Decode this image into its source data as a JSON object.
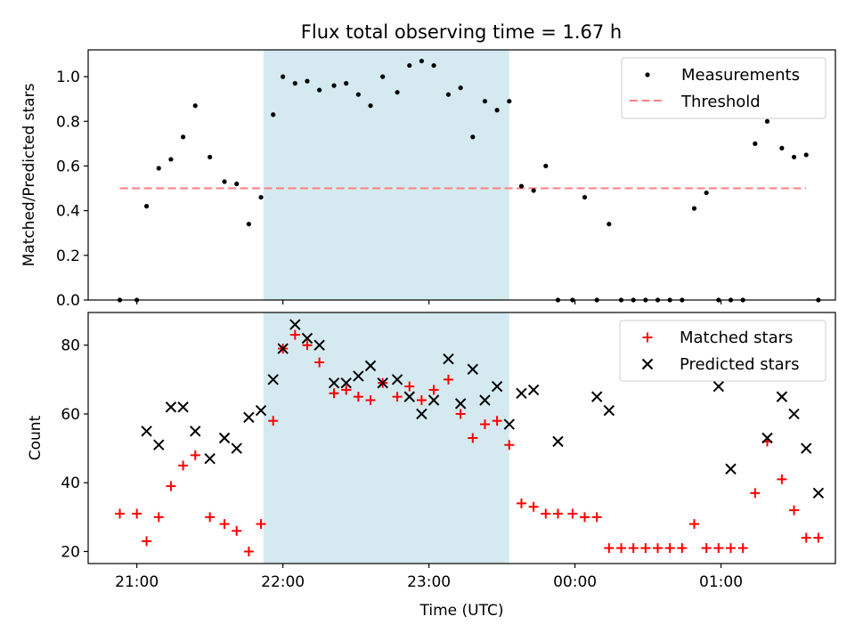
{
  "chart_data": [
    {
      "type": "scatter",
      "title": "Flux total observing time = 1.67 h",
      "xlabel": "",
      "ylabel": "Matched/Predicted stars",
      "xlim": [
        "20:40",
        "01:47"
      ],
      "ylim": [
        0,
        1.12
      ],
      "yticks": [
        "0.0",
        "0.2",
        "0.4",
        "0.6",
        "0.8",
        "1.0"
      ],
      "shaded_span": {
        "start": "21:52",
        "end": "23:33",
        "color": "#d4eaf0"
      },
      "legend": {
        "position": "upper right",
        "entries": [
          {
            "label": "Measurements",
            "marker": "dot",
            "color": "#000000"
          },
          {
            "label": "Threshold",
            "marker": "dashed-line",
            "color": "#ff7f7f"
          }
        ]
      },
      "series": [
        {
          "name": "Measurements",
          "marker": "dot",
          "color": "#000000",
          "x": [
            "20:53",
            "21:00",
            "21:04",
            "21:09",
            "21:14",
            "21:19",
            "21:24",
            "21:30",
            "21:36",
            "21:41",
            "21:46",
            "21:51",
            "21:56",
            "22:00",
            "22:05",
            "22:10",
            "22:15",
            "22:21",
            "22:26",
            "22:31",
            "22:36",
            "22:41",
            "22:47",
            "22:52",
            "22:57",
            "23:02",
            "23:08",
            "23:13",
            "23:18",
            "23:23",
            "23:28",
            "23:33",
            "23:38",
            "23:43",
            "23:48",
            "23:53",
            "23:59",
            "00:04",
            "00:09",
            "00:14",
            "00:19",
            "00:24",
            "00:29",
            "00:34",
            "00:39",
            "00:44",
            "00:49",
            "00:54",
            "00:59",
            "01:04",
            "01:09",
            "01:14",
            "01:19",
            "01:25",
            "01:30",
            "01:35",
            "01:40"
          ],
          "y": [
            0,
            0,
            0.42,
            0.59,
            0.63,
            0.73,
            0.87,
            0.64,
            0.53,
            0.52,
            0.34,
            0.46,
            0.83,
            1.0,
            0.97,
            0.98,
            0.94,
            0.96,
            0.97,
            0.92,
            0.87,
            1.0,
            0.93,
            1.05,
            1.07,
            1.05,
            0.92,
            0.95,
            0.73,
            0.89,
            0.85,
            0.89,
            0.51,
            0.49,
            0.6,
            0,
            0,
            0.46,
            0,
            0.34,
            0,
            0,
            0,
            0,
            0,
            0,
            0.41,
            0.48,
            0,
            0,
            0,
            0.7,
            0.8,
            0.68,
            0.64,
            0.65,
            0
          ]
        },
        {
          "name": "Threshold",
          "marker": "dashed-line",
          "color": "#ff7f7f",
          "x": [
            "20:53",
            "01:35"
          ],
          "y": [
            0.5,
            0.5
          ]
        }
      ]
    },
    {
      "type": "scatter",
      "title": "",
      "xlabel": "Time (UTC)",
      "ylabel": "Count",
      "xlim": [
        "20:40",
        "01:47"
      ],
      "ylim": [
        16.5,
        89.5
      ],
      "yticks": [
        "20",
        "40",
        "60",
        "80"
      ],
      "xticks": [
        "21:00",
        "22:00",
        "23:00",
        "00:00",
        "01:00"
      ],
      "shaded_span": {
        "start": "21:52",
        "end": "23:33",
        "color": "#d4eaf0"
      },
      "legend": {
        "position": "upper right",
        "entries": [
          {
            "label": "Matched stars",
            "marker": "plus",
            "color": "#ff0000"
          },
          {
            "label": "Predicted stars",
            "marker": "x",
            "color": "#000000"
          }
        ]
      },
      "series": [
        {
          "name": "Matched stars",
          "marker": "plus",
          "color": "#ff0000",
          "x": [
            "20:53",
            "21:00",
            "21:04",
            "21:09",
            "21:14",
            "21:19",
            "21:24",
            "21:30",
            "21:36",
            "21:41",
            "21:46",
            "21:51",
            "21:56",
            "22:00",
            "22:05",
            "22:10",
            "22:15",
            "22:21",
            "22:26",
            "22:31",
            "22:36",
            "22:41",
            "22:47",
            "22:52",
            "22:57",
            "23:02",
            "23:08",
            "23:13",
            "23:18",
            "23:23",
            "23:28",
            "23:33",
            "23:38",
            "23:43",
            "23:48",
            "23:53",
            "23:59",
            "00:04",
            "00:09",
            "00:14",
            "00:19",
            "00:24",
            "00:29",
            "00:34",
            "00:39",
            "00:44",
            "00:49",
            "00:54",
            "00:59",
            "01:04",
            "01:09",
            "01:14",
            "01:19",
            "01:25",
            "01:30",
            "01:35",
            "01:40"
          ],
          "y": [
            31,
            31,
            23,
            30,
            39,
            45,
            48,
            30,
            28,
            26,
            20,
            28,
            58,
            79,
            83,
            80,
            75,
            66,
            67,
            65,
            64,
            69,
            65,
            68,
            64,
            67,
            70,
            60,
            53,
            57,
            58,
            51,
            34,
            33,
            31,
            31,
            31,
            30,
            30,
            21,
            21,
            21,
            21,
            21,
            21,
            21,
            28,
            21,
            21,
            21,
            21,
            37,
            52,
            41,
            32,
            24,
            24
          ]
        },
        {
          "name": "Predicted stars",
          "marker": "x",
          "color": "#000000",
          "x": [
            "21:04",
            "21:09",
            "21:14",
            "21:19",
            "21:24",
            "21:30",
            "21:36",
            "21:41",
            "21:46",
            "21:51",
            "21:56",
            "22:00",
            "22:05",
            "22:10",
            "22:15",
            "22:21",
            "22:26",
            "22:31",
            "22:36",
            "22:41",
            "22:47",
            "22:52",
            "22:57",
            "23:02",
            "23:08",
            "23:13",
            "23:18",
            "23:23",
            "23:28",
            "23:33",
            "23:38",
            "23:43",
            "23:53",
            "00:09",
            "00:14",
            "00:59",
            "01:04",
            "01:19",
            "01:25",
            "01:30",
            "01:35",
            "01:40"
          ],
          "y": [
            55,
            51,
            62,
            62,
            55,
            47,
            53,
            50,
            59,
            61,
            70,
            79,
            86,
            82,
            80,
            69,
            69,
            71,
            74,
            69,
            70,
            65,
            60,
            64,
            76,
            63,
            73,
            64,
            68,
            57,
            66,
            67,
            52,
            65,
            61,
            68,
            44,
            53,
            65,
            60,
            50,
            37
          ]
        }
      ]
    }
  ]
}
